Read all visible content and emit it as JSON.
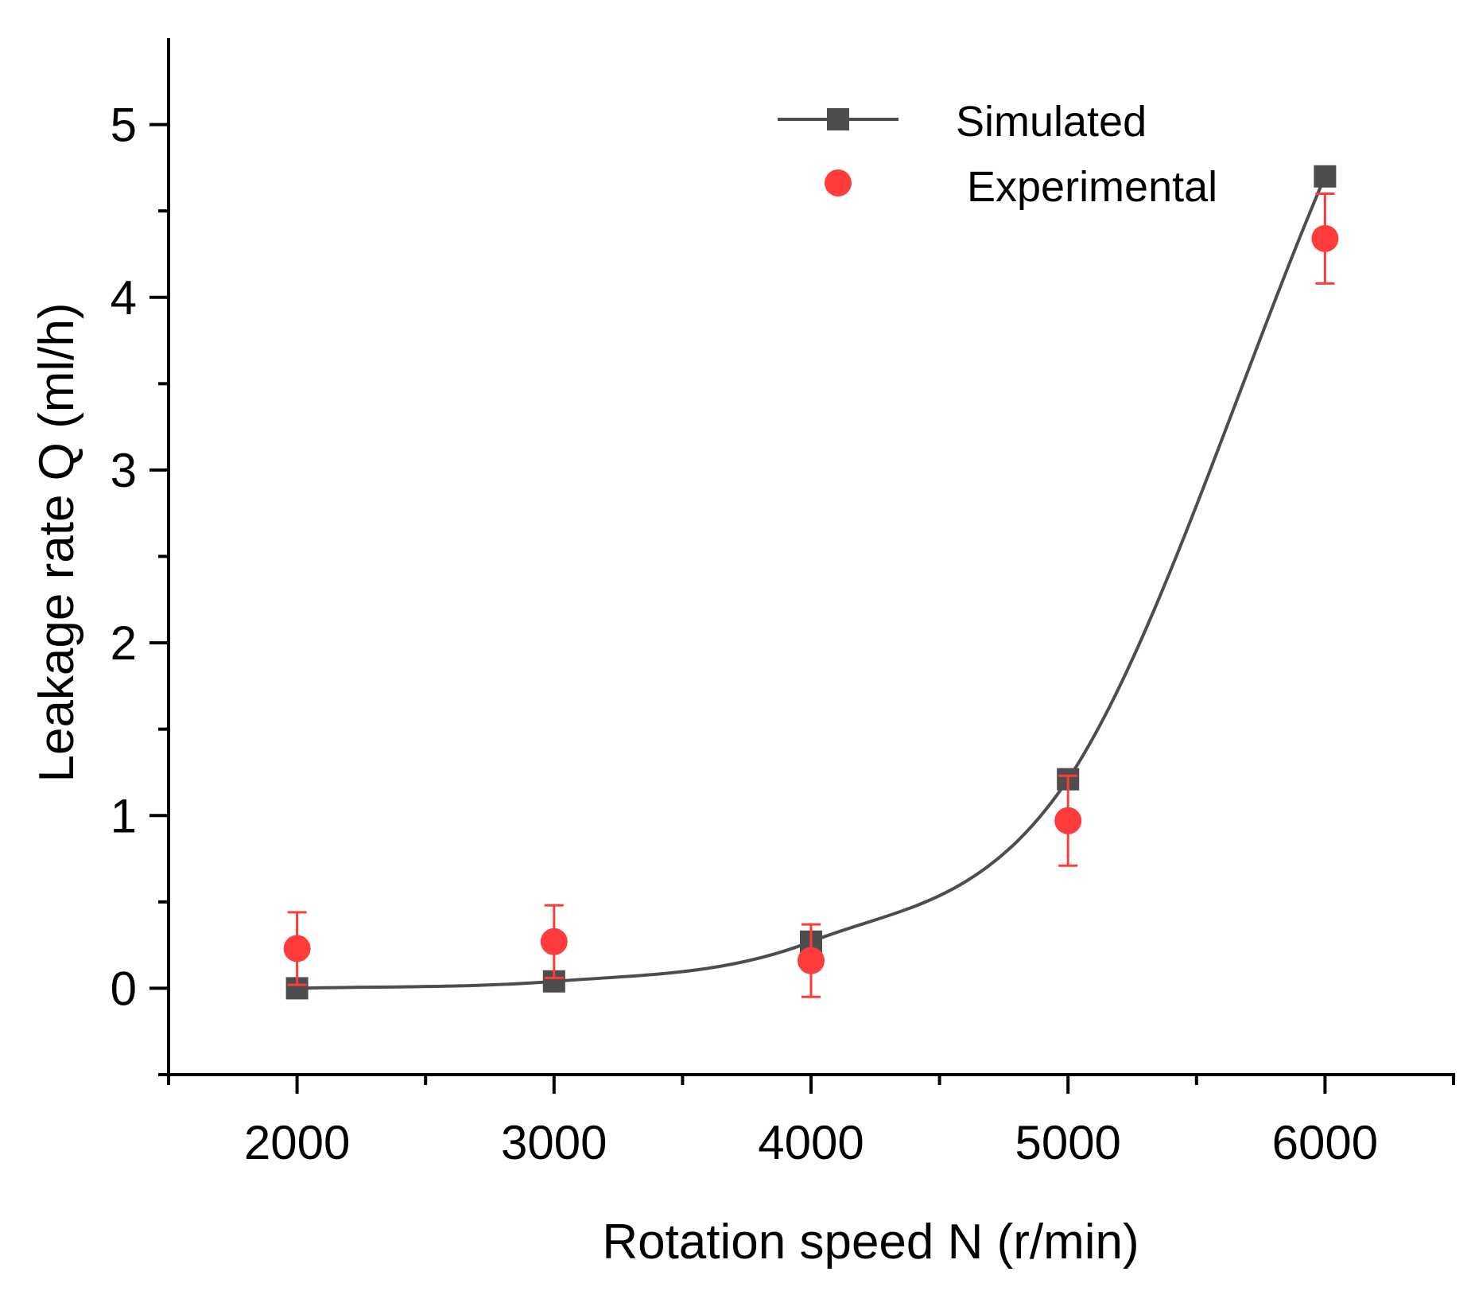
{
  "chart_data": {
    "type": "scatter",
    "title": "",
    "xlabel": "Rotation speed N (r/min)",
    "ylabel": "Leakage rate Q (ml/h)",
    "xlim": [
      1500,
      6500
    ],
    "ylim": [
      -0.5,
      5.5
    ],
    "xticks": [
      2000,
      3000,
      4000,
      5000,
      6000
    ],
    "xtick_labels": [
      "2000",
      "3000",
      "4000",
      "5000",
      "6000"
    ],
    "x_minor_ticks": [
      1500,
      2500,
      3500,
      4500,
      5500,
      6500
    ],
    "yticks": [
      0,
      1,
      2,
      3,
      4,
      5
    ],
    "ytick_labels": [
      "0",
      "1",
      "2",
      "3",
      "4",
      "5"
    ],
    "y_minor_ticks": [
      -0.5,
      0.5,
      1.5,
      2.5,
      3.5,
      4.5
    ],
    "grid": false,
    "legend_position": "top-right",
    "series": [
      {
        "name": "Simulated",
        "style": "line-square",
        "color": "#4d4d4d",
        "x": [
          2000,
          3000,
          4000,
          5000,
          6000
        ],
        "y": [
          0.0,
          0.04,
          0.27,
          1.21,
          4.7
        ]
      },
      {
        "name": "Experimental",
        "style": "circle-errorbar",
        "color": "#ff3b3b",
        "x": [
          2000,
          3000,
          4000,
          5000,
          6000
        ],
        "y": [
          0.23,
          0.27,
          0.16,
          0.97,
          4.34
        ],
        "yerr": [
          0.21,
          0.21,
          0.21,
          0.26,
          0.26
        ]
      }
    ]
  }
}
